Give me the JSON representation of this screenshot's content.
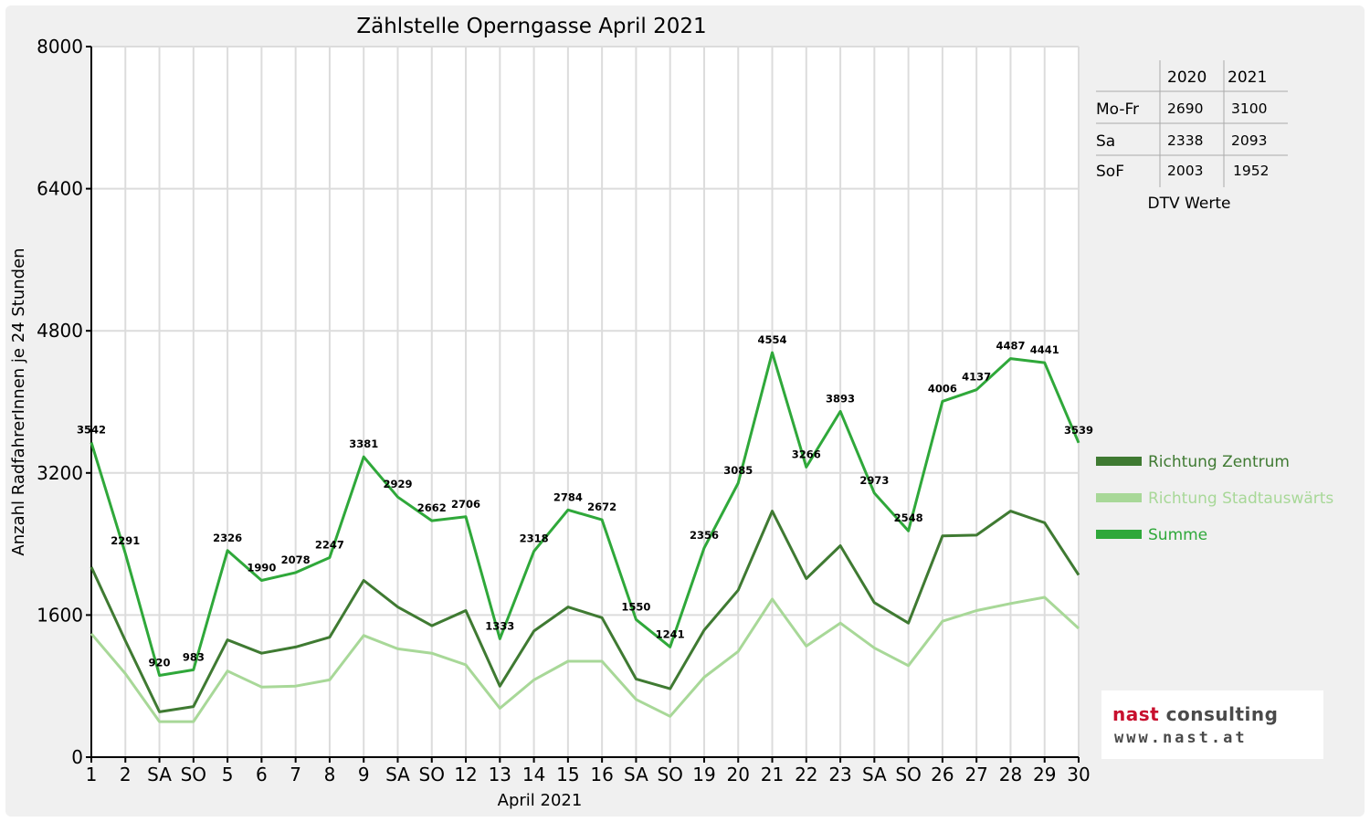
{
  "chart_data": {
    "type": "line",
    "title": "Zählstelle Operngasse April 2021",
    "xlabel": "April 2021",
    "ylabel": "Anzahl RadfahrerInnen je 24 Stunden",
    "ylim": [
      0,
      8000
    ],
    "yticks": [
      0,
      1600,
      3200,
      4800,
      6400,
      8000
    ],
    "grid": true,
    "legend_position": "right",
    "categories": [
      "1",
      "2",
      "SA",
      "SO",
      "5",
      "6",
      "7",
      "8",
      "9",
      "SA",
      "SO",
      "12",
      "13",
      "14",
      "15",
      "16",
      "SA",
      "SO",
      "19",
      "20",
      "21",
      "22",
      "23",
      "SA",
      "SO",
      "26",
      "27",
      "28",
      "29",
      "30"
    ],
    "highlighted_categories": [
      3,
      4,
      10,
      17,
      24
    ],
    "series": [
      {
        "name": "Richtung Zentrum",
        "color": "#3f7a32",
        "values": [
          2140,
          1310,
          510,
          570,
          1320,
          1170,
          1240,
          1350,
          1990,
          1690,
          1480,
          1650,
          800,
          1420,
          1690,
          1570,
          880,
          770,
          1430,
          1880,
          2770,
          2010,
          2380,
          1740,
          1510,
          2490,
          2500,
          2770,
          2640,
          2050
        ]
      },
      {
        "name": "Richtung Stadtauswärts",
        "color": "#a8d898",
        "values": [
          1390,
          940,
          400,
          400,
          970,
          790,
          800,
          870,
          1370,
          1220,
          1170,
          1040,
          550,
          870,
          1080,
          1080,
          650,
          460,
          900,
          1190,
          1780,
          1250,
          1510,
          1230,
          1030,
          1530,
          1650,
          1730,
          1800,
          1450
        ]
      },
      {
        "name": "Summe",
        "color": "#2fa83a",
        "values": [
          3542,
          2291,
          920,
          983,
          2326,
          1990,
          2078,
          2247,
          3381,
          2929,
          2662,
          2706,
          1333,
          2318,
          2784,
          2672,
          1550,
          1241,
          2356,
          3085,
          4554,
          3266,
          3893,
          2973,
          2548,
          4006,
          4137,
          4487,
          4441,
          3539
        ]
      }
    ],
    "data_labels": [
      "3542",
      "2291",
      "920",
      "983",
      "2326",
      "1990",
      "2078",
      "2247",
      "3381",
      "2929",
      "2662",
      "2706",
      "1333",
      "2318",
      "2784",
      "2672",
      "1550",
      "1241",
      "2356",
      "3085",
      "4554",
      "3266",
      "3893",
      "2973",
      "2548",
      "4006",
      "4137",
      "4487",
      "4441",
      "3539"
    ]
  },
  "dtv_table": {
    "caption": "DTV Werte",
    "headers": [
      "",
      "2020",
      "2021"
    ],
    "rows": [
      {
        "label": "Mo-Fr",
        "v2020": "2690",
        "v2021": "3100"
      },
      {
        "label": "Sa",
        "v2020": "2338",
        "v2021": "2093"
      },
      {
        "label": "SoF",
        "v2020": "2003",
        "v2021": "1952"
      }
    ]
  },
  "logo": {
    "word1": "nast",
    "word2": " consulting",
    "url": "www.nast.at"
  }
}
